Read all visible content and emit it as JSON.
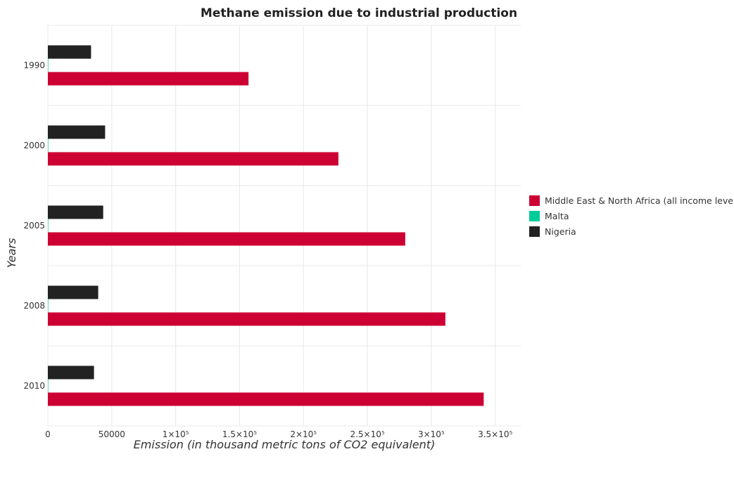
{
  "chart_data": {
    "type": "bar",
    "orientation": "horizontal",
    "title": "Methane emission due to industrial production",
    "xlabel": "Emission (in thousand metric tons of CO2 equivalent)",
    "ylabel": "Years",
    "categories": [
      "1990",
      "2000",
      "2005",
      "2008",
      "2010"
    ],
    "xlim": [
      0,
      370000
    ],
    "xticks": [
      0,
      50000,
      100000,
      150000,
      200000,
      250000,
      300000,
      350000
    ],
    "xtick_labels": [
      "0",
      "50000",
      "1×10⁵",
      "1.5×10⁵",
      "2×10⁵",
      "2.5×10⁵",
      "3×10⁵",
      "3.5×10⁵"
    ],
    "grid": true,
    "legend_position": "right",
    "series": [
      {
        "name": "Middle East & North Africa (all income levels)",
        "color": "#cc0033",
        "values": [
          157000,
          227300,
          279600,
          311000,
          341000
        ]
      },
      {
        "name": "Malta",
        "color": "#00cc99",
        "values": [
          3,
          4,
          4,
          4,
          4
        ]
      },
      {
        "name": "Nigeria",
        "color": "#222222",
        "values": [
          33800,
          44800,
          43300,
          39400,
          36100
        ]
      }
    ]
  }
}
